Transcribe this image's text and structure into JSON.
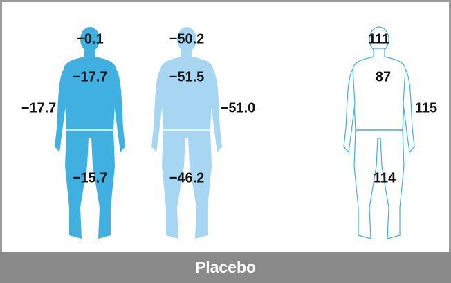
{
  "figures": [
    {
      "labels": {
        "head": "−0.1",
        "trunk": "−17.7",
        "arm": "−17.7",
        "legs": "−15.7"
      }
    },
    {
      "labels": {
        "head": "−50.2",
        "trunk": "−51.5",
        "arm": "−51.0",
        "legs": "−46.2"
      }
    },
    {
      "labels": {
        "head": "111",
        "trunk": "87",
        "arm": "115",
        "legs": "114"
      }
    }
  ],
  "footer": {
    "label": "Placebo"
  }
}
